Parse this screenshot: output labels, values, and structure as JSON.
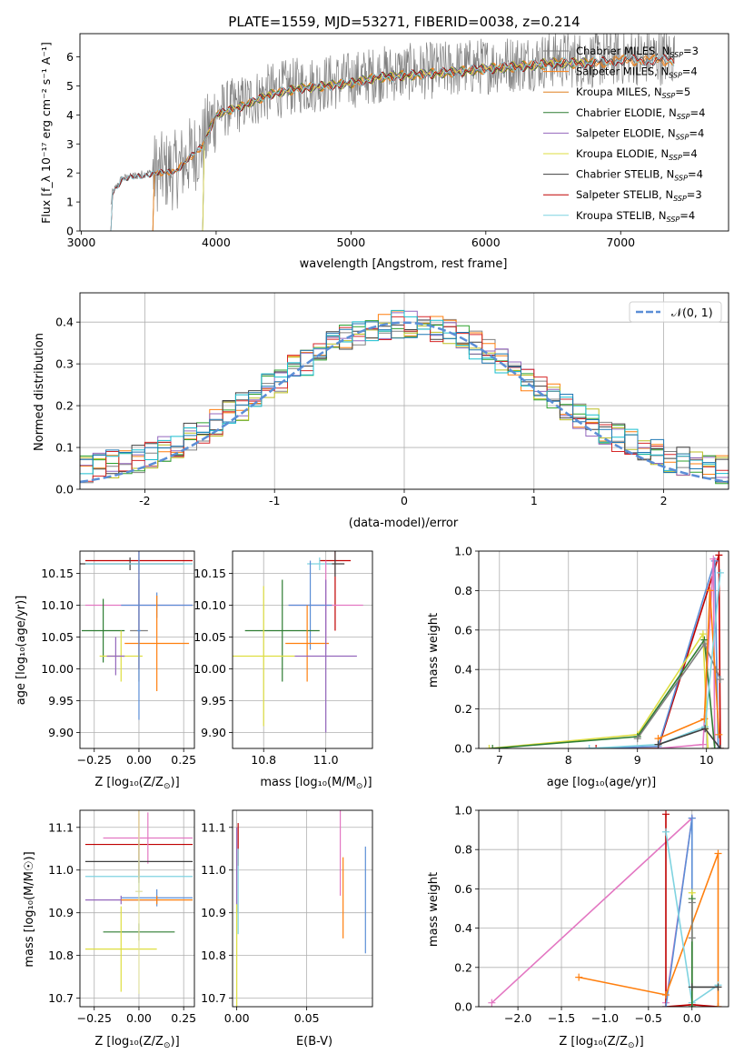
{
  "figure": {
    "title": "PLATE=1559, MJD=53271, FIBERID=0038, z=0.214"
  },
  "colors": {
    "data": "#808080",
    "grid": "#b0b0b0",
    "normal": "#5b8ed6",
    "series": [
      "#808080",
      "#ff7f0e",
      "#2ca02c",
      "#9467bd",
      "#bcbd22",
      "#404040",
      "#d62728",
      "#17becf",
      "#1f77b4",
      "#e377c2",
      "#8c564b",
      "#7f7f7f"
    ]
  },
  "chart_data": [
    {
      "id": "spectrum",
      "type": "line",
      "xlabel": "wavelength [Angstrom, rest frame]",
      "ylabel": "Flux [f_λ 10⁻¹⁷ erg cm⁻² s⁻¹ A⁻¹]",
      "xlim": [
        2990,
        7800
      ],
      "ylim": [
        0,
        6.8
      ],
      "xticks": [
        3000,
        4000,
        5000,
        6000,
        7000
      ],
      "yticks": [
        0,
        1,
        2,
        3,
        4,
        5,
        6
      ],
      "grid": false,
      "legend_position": "top-right",
      "series": [
        {
          "name": "Chabrier MILES, N_SSP=3",
          "legend_main": "Chabrier MILES, N",
          "legend_sub": "SSP",
          "legend_tail": "=3",
          "color": "#808080",
          "start": 3530,
          "end": 7400
        },
        {
          "name": "Salpeter MILES, N_SSP=4",
          "legend_main": "Salpeter MILES, N",
          "legend_sub": "SSP",
          "legend_tail": "=4",
          "color": "#ff7f0e",
          "start": 3530,
          "end": 7400
        },
        {
          "name": "Kroupa MILES, N_SSP=5",
          "legend_main": "Kroupa MILES, N",
          "legend_sub": "SSP",
          "legend_tail": "=5",
          "color": "#e08020",
          "start": 3530,
          "end": 7400
        },
        {
          "name": "Chabrier ELODIE, N_SSP=4",
          "legend_main": "Chabrier ELODIE, N",
          "legend_sub": "SSP",
          "legend_tail": "=4",
          "color": "#2e7d32",
          "start": 3900,
          "end": 6800
        },
        {
          "name": "Salpeter ELODIE, N_SSP=4",
          "legend_main": "Salpeter ELODIE, N",
          "legend_sub": "SSP",
          "legend_tail": "=4",
          "color": "#9467bd",
          "start": 3900,
          "end": 6800
        },
        {
          "name": "Kroupa ELODIE, N_SSP=4",
          "legend_main": "Kroupa ELODIE, N",
          "legend_sub": "SSP",
          "legend_tail": "=4",
          "color": "#dede40",
          "start": 3900,
          "end": 6800
        },
        {
          "name": "Chabrier STELIB, N_SSP=4",
          "legend_main": "Chabrier STELIB, N",
          "legend_sub": "SSP",
          "legend_tail": "=4",
          "color": "#404040",
          "start": 3220,
          "end": 7400
        },
        {
          "name": "Salpeter STELIB, N_SSP=3",
          "legend_main": "Salpeter STELIB, N",
          "legend_sub": "SSP",
          "legend_tail": "=3",
          "color": "#c00000",
          "start": 3220,
          "end": 7400
        },
        {
          "name": "Kroupa STELIB, N_SSP=4",
          "legend_main": "Kroupa STELIB, N",
          "legend_sub": "SSP",
          "legend_tail": "=4",
          "color": "#7fd3e0",
          "start": 3220,
          "end": 7400
        }
      ],
      "continuum_points": [
        [
          3200,
          0
        ],
        [
          3230,
          1.3
        ],
        [
          3300,
          1.8
        ],
        [
          3500,
          2.0
        ],
        [
          3700,
          2.1
        ],
        [
          3900,
          3.0
        ],
        [
          4000,
          4.1
        ],
        [
          4200,
          4.4
        ],
        [
          4400,
          4.8
        ],
        [
          4600,
          5.0
        ],
        [
          4800,
          5.1
        ],
        [
          5000,
          5.2
        ],
        [
          5200,
          5.4
        ],
        [
          5500,
          5.5
        ],
        [
          5800,
          5.6
        ],
        [
          6000,
          5.7
        ],
        [
          6300,
          5.8
        ],
        [
          6500,
          5.9
        ],
        [
          6800,
          5.9
        ],
        [
          7000,
          6.0
        ],
        [
          7400,
          6.0
        ]
      ]
    },
    {
      "id": "residuals",
      "type": "step",
      "xlabel": "(data-model)/error",
      "ylabel": "Normed distribution",
      "xlim": [
        -2.5,
        2.5
      ],
      "ylim": [
        0,
        0.47
      ],
      "xticks": [
        -2,
        -1,
        0,
        1,
        2
      ],
      "yticks": [
        0.0,
        0.1,
        0.2,
        0.3,
        0.4
      ],
      "ytick_labels": [
        "0.0",
        "0.1",
        "0.2",
        "0.3",
        "0.4"
      ],
      "grid": true,
      "legend_position": "top-right",
      "legend_label": "𝒩(0, 1)",
      "bin_width": 0.1,
      "normal_curve": {
        "mean": 0,
        "sigma": 1
      }
    },
    {
      "id": "age-vs-Z",
      "type": "errorbar",
      "xlabel_main": "Z [log₁₀(Z/Z",
      "xlabel_tail": ")]",
      "ylabel": "age  [log₁₀(age/yr)]",
      "xlim": [
        -0.33,
        0.31
      ],
      "ylim": [
        9.875,
        10.185
      ],
      "xticks": [
        -0.25,
        0.0,
        0.25
      ],
      "xtick_labels": [
        "−0.25",
        "0.00",
        "0.25"
      ],
      "yticks": [
        9.9,
        9.95,
        10.0,
        10.05,
        10.1,
        10.15
      ],
      "ytick_labels": [
        "9.90",
        "9.95",
        "10.00",
        "10.05",
        "10.10",
        "10.15"
      ],
      "grid": true,
      "points": [
        {
          "x": 0.0,
          "y": 10.17,
          "xerr": 0.3,
          "yerr": 0.17,
          "color": "#c00000"
        },
        {
          "x": -0.05,
          "y": 10.165,
          "xerr": 0.3,
          "yerr": 0.01,
          "color": "#404040"
        },
        {
          "x": 0.0,
          "y": 10.165,
          "xerr": 0.3,
          "yerr": 0.01,
          "color": "#7fd3e0"
        },
        {
          "x": 0.0,
          "y": 10.1,
          "xerr": 0.3,
          "yerr": 0.04,
          "color": "#e377c2"
        },
        {
          "x": 0.1,
          "y": 10.1,
          "xerr": 0.2,
          "yerr": 0.02,
          "color": "#5b8ed6"
        },
        {
          "x": -0.2,
          "y": 10.06,
          "xerr": 0.12,
          "yerr": 0.05,
          "color": "#2e7d32"
        },
        {
          "x": 0.0,
          "y": 10.06,
          "xerr": 0.05,
          "yerr": 0.08,
          "color": "#808080"
        },
        {
          "x": 0.1,
          "y": 10.04,
          "xerr": 0.18,
          "yerr": 0.075,
          "color": "#ff7f0e"
        },
        {
          "x": -0.1,
          "y": 10.02,
          "xerr": 0.12,
          "yerr": 0.04,
          "color": "#dede40"
        },
        {
          "x": -0.13,
          "y": 10.02,
          "xerr": 0.05,
          "yerr": 0.03,
          "color": "#9467bd"
        },
        {
          "x": 0.0,
          "y": 10.06,
          "xerr": 0.01,
          "yerr": 0.14,
          "color": "#5b8ed6"
        }
      ]
    },
    {
      "id": "age-vs-mass",
      "type": "errorbar",
      "xlabel_main": "mass [log₁₀(M/M",
      "xlabel_tail": ")]",
      "ylabel": "",
      "xlim": [
        10.7,
        11.15
      ],
      "ylim": [
        9.875,
        10.185
      ],
      "xticks": [
        10.8,
        11.0
      ],
      "xtick_labels": [
        "10.8",
        "11.0"
      ],
      "yticks": [
        9.9,
        9.95,
        10.0,
        10.05,
        10.1,
        10.15
      ],
      "ytick_labels": [
        "9.90",
        "9.95",
        "10.00",
        "10.05",
        "10.10",
        "10.15"
      ],
      "grid": true,
      "points": [
        {
          "x": 11.03,
          "y": 10.17,
          "xerr": 0.05,
          "yerr": 0.11,
          "color": "#c00000"
        },
        {
          "x": 11.03,
          "y": 10.165,
          "xerr": 0.03,
          "yerr": 0.02,
          "color": "#404040"
        },
        {
          "x": 10.98,
          "y": 10.165,
          "xerr": 0.04,
          "yerr": 0.01,
          "color": "#7fd3e0"
        },
        {
          "x": 11.0,
          "y": 10.1,
          "xerr": 0.12,
          "yerr": 0.07,
          "color": "#e377c2"
        },
        {
          "x": 10.95,
          "y": 10.1,
          "xerr": 0.07,
          "yerr": 0.07,
          "color": "#5b8ed6"
        },
        {
          "x": 10.86,
          "y": 10.06,
          "xerr": 0.12,
          "yerr": 0.08,
          "color": "#2e7d32"
        },
        {
          "x": 10.94,
          "y": 10.04,
          "xerr": 0.07,
          "yerr": 0.06,
          "color": "#ff7f0e"
        },
        {
          "x": 10.8,
          "y": 10.02,
          "xerr": 0.1,
          "yerr": 0.11,
          "color": "#dede40"
        },
        {
          "x": 11.0,
          "y": 10.02,
          "xerr": 0.1,
          "yerr": 0.12,
          "color": "#9467bd"
        }
      ]
    },
    {
      "id": "mass-weight-vs-age",
      "type": "line",
      "xlabel": "age  [log₁₀(age/yr)]",
      "ylabel": "mass weight",
      "xlim": [
        6.7,
        10.32
      ],
      "ylim": [
        0,
        1.0
      ],
      "xticks": [
        7,
        8,
        9,
        10
      ],
      "yticks": [
        0.0,
        0.2,
        0.4,
        0.6,
        0.8,
        1.0
      ],
      "ytick_labels": [
        "0.0",
        "0.2",
        "0.4",
        "0.6",
        "0.8",
        "1.0"
      ],
      "grid": true,
      "series": [
        {
          "color": "#c00000",
          "points": [
            [
              8.4,
              0.0
            ],
            [
              9.3,
              0.0
            ],
            [
              10.18,
              0.98
            ],
            [
              10.2,
              0.0
            ]
          ]
        },
        {
          "color": "#5b8ed6",
          "points": [
            [
              8.3,
              0.0
            ],
            [
              9.3,
              0.01
            ],
            [
              10.12,
              0.95
            ],
            [
              10.17,
              0.0
            ]
          ]
        },
        {
          "color": "#e377c2",
          "points": [
            [
              9.3,
              0.0
            ],
            [
              9.95,
              0.02
            ],
            [
              10.1,
              0.96
            ],
            [
              10.12,
              0.0
            ]
          ]
        },
        {
          "color": "#dede40",
          "points": [
            [
              6.85,
              0.0
            ],
            [
              9.0,
              0.07
            ],
            [
              9.95,
              0.58
            ],
            [
              10.02,
              0.0
            ]
          ]
        },
        {
          "color": "#2e7d32",
          "points": [
            [
              6.9,
              0.0
            ],
            [
              9.0,
              0.06
            ],
            [
              9.97,
              0.55
            ],
            [
              10.12,
              0.0
            ]
          ]
        },
        {
          "color": "#808080",
          "points": [
            [
              9.0,
              0.05
            ],
            [
              9.97,
              0.53
            ],
            [
              10.14,
              0.4
            ],
            [
              10.2,
              0.35
            ]
          ]
        },
        {
          "color": "#ff7f0e",
          "points": [
            [
              9.3,
              0.05
            ],
            [
              9.97,
              0.15
            ],
            [
              10.05,
              0.8
            ],
            [
              10.18,
              0.07
            ]
          ]
        },
        {
          "color": "#7fd3e0",
          "points": [
            [
              8.3,
              0.0
            ],
            [
              9.3,
              0.02
            ],
            [
              9.98,
              0.11
            ],
            [
              10.2,
              0.89
            ]
          ]
        },
        {
          "color": "#404040",
          "points": [
            [
              9.3,
              0.02
            ],
            [
              9.98,
              0.1
            ],
            [
              10.2,
              0.0
            ]
          ]
        }
      ]
    },
    {
      "id": "mass-vs-Z",
      "type": "errorbar",
      "xlabel_main": "Z [log₁₀(Z/Z",
      "xlabel_tail": ")]",
      "ylabel": "mass [log₁₀(M/M☉)]",
      "xlim": [
        -0.33,
        0.31
      ],
      "ylim": [
        10.68,
        11.14
      ],
      "xticks": [
        -0.25,
        0.0,
        0.25
      ],
      "xtick_labels": [
        "−0.25",
        "0.00",
        "0.25"
      ],
      "yticks": [
        10.7,
        10.8,
        10.9,
        11.0,
        11.1
      ],
      "ytick_labels": [
        "10.7",
        "10.8",
        "10.9",
        "11.0",
        "11.1"
      ],
      "grid": true,
      "points": [
        {
          "x": 0.0,
          "y": 11.06,
          "xerr": 0.3,
          "yerr": 0.08,
          "color": "#c00000"
        },
        {
          "x": 0.05,
          "y": 11.075,
          "xerr": 0.25,
          "yerr": 0.06,
          "color": "#e377c2"
        },
        {
          "x": 0.0,
          "y": 11.02,
          "xerr": 0.3,
          "yerr": 0.05,
          "color": "#404040"
        },
        {
          "x": 0.0,
          "y": 10.985,
          "xerr": 0.3,
          "yerr": 0.04,
          "color": "#7fd3e0"
        },
        {
          "x": 0.1,
          "y": 10.935,
          "xerr": 0.2,
          "yerr": 0.02,
          "color": "#5b8ed6"
        },
        {
          "x": -0.1,
          "y": 10.93,
          "xerr": 0.2,
          "yerr": 0.01,
          "color": "#9467bd"
        },
        {
          "x": 0.1,
          "y": 10.93,
          "xerr": 0.2,
          "yerr": 0.01,
          "color": "#ff7f0e"
        },
        {
          "x": 0.0,
          "y": 10.855,
          "xerr": 0.2,
          "yerr": 0.02,
          "color": "#2e7d32"
        },
        {
          "x": -0.1,
          "y": 10.815,
          "xerr": 0.2,
          "yerr": 0.1,
          "color": "#dede40"
        },
        {
          "x": 0.0,
          "y": 10.95,
          "xerr": 0.02,
          "yerr": 0.24,
          "color": "#e0e0a0"
        }
      ]
    },
    {
      "id": "mass-vs-ebv",
      "type": "errorbar",
      "xlabel": "E(B-V)",
      "ylabel": "",
      "xlim": [
        -0.003,
        0.097
      ],
      "ylim": [
        10.68,
        11.14
      ],
      "xticks": [
        0.0,
        0.05
      ],
      "xtick_labels": [
        "0.00",
        "0.05"
      ],
      "yticks": [
        10.7,
        10.8,
        10.9,
        11.0,
        11.1
      ],
      "ytick_labels": [
        "10.7",
        "10.8",
        "10.9",
        "11.0",
        "11.1"
      ],
      "grid": true,
      "points": [
        {
          "x": 0.001,
          "y": 11.06,
          "xerr": 0,
          "yerr": 0.05,
          "color": "#c00000"
        },
        {
          "x": 0.0,
          "y": 11.0,
          "xerr": 0,
          "yerr": 0.1,
          "color": "#9467bd"
        },
        {
          "x": 0.001,
          "y": 10.95,
          "xerr": 0,
          "yerr": 0.1,
          "color": "#7fd3e0"
        },
        {
          "x": 0.0,
          "y": 10.8,
          "xerr": 0,
          "yerr": 0.12,
          "color": "#dede40"
        },
        {
          "x": 0.074,
          "y": 11.04,
          "xerr": 0,
          "yerr": 0.1,
          "color": "#e377c2"
        },
        {
          "x": 0.076,
          "y": 10.935,
          "xerr": 0,
          "yerr": 0.095,
          "color": "#ff7f0e"
        },
        {
          "x": 0.092,
          "y": 10.93,
          "xerr": 0,
          "yerr": 0.125,
          "color": "#5b8ed6"
        }
      ]
    },
    {
      "id": "mass-weight-vs-Z",
      "type": "line",
      "xlabel_main": "Z [log₁₀(Z/Z",
      "xlabel_tail": ")]",
      "ylabel": "mass weight",
      "xlim": [
        -2.45,
        0.42
      ],
      "ylim": [
        0,
        1.0
      ],
      "xticks": [
        -2.0,
        -1.5,
        -1.0,
        -0.5,
        0.0
      ],
      "xtick_labels": [
        "−2.0",
        "−1.5",
        "−1.0",
        "−0.5",
        "0.0"
      ],
      "yticks": [
        0.0,
        0.2,
        0.4,
        0.6,
        0.8,
        1.0
      ],
      "ytick_labels": [
        "0.0",
        "0.2",
        "0.4",
        "0.6",
        "0.8",
        "1.0"
      ],
      "grid": true,
      "series": [
        {
          "color": "#e377c2",
          "points": [
            [
              -2.3,
              0.02
            ],
            [
              0.0,
              0.96
            ],
            [
              -0.3,
              0.02
            ]
          ]
        },
        {
          "color": "#c00000",
          "points": [
            [
              -0.3,
              0.98
            ],
            [
              -0.3,
              0.0
            ],
            [
              0.0,
              0.01
            ],
            [
              0.3,
              0.0
            ]
          ]
        },
        {
          "color": "#5b8ed6",
          "points": [
            [
              -0.3,
              0.0
            ],
            [
              0.0,
              0.96
            ],
            [
              0.0,
              0.0
            ]
          ]
        },
        {
          "color": "#ff7f0e",
          "points": [
            [
              -1.3,
              0.15
            ],
            [
              -0.3,
              0.06
            ],
            [
              0.3,
              0.78
            ],
            [
              0.3,
              0.0
            ]
          ]
        },
        {
          "color": "#7fd3e0",
          "points": [
            [
              -0.3,
              0.89
            ],
            [
              0.0,
              0.02
            ],
            [
              0.3,
              0.11
            ]
          ]
        },
        {
          "color": "#dede40",
          "points": [
            [
              0.0,
              0.58
            ],
            [
              0.0,
              0.0
            ]
          ]
        },
        {
          "color": "#2e7d32",
          "points": [
            [
              0.0,
              0.55
            ],
            [
              0.0,
              0.0
            ]
          ]
        },
        {
          "color": "#808080",
          "points": [
            [
              0.0,
              0.35
            ],
            [
              0.0,
              0.53
            ]
          ]
        },
        {
          "color": "#404040",
          "points": [
            [
              0.0,
              0.1
            ],
            [
              0.3,
              0.1
            ]
          ]
        }
      ]
    }
  ]
}
